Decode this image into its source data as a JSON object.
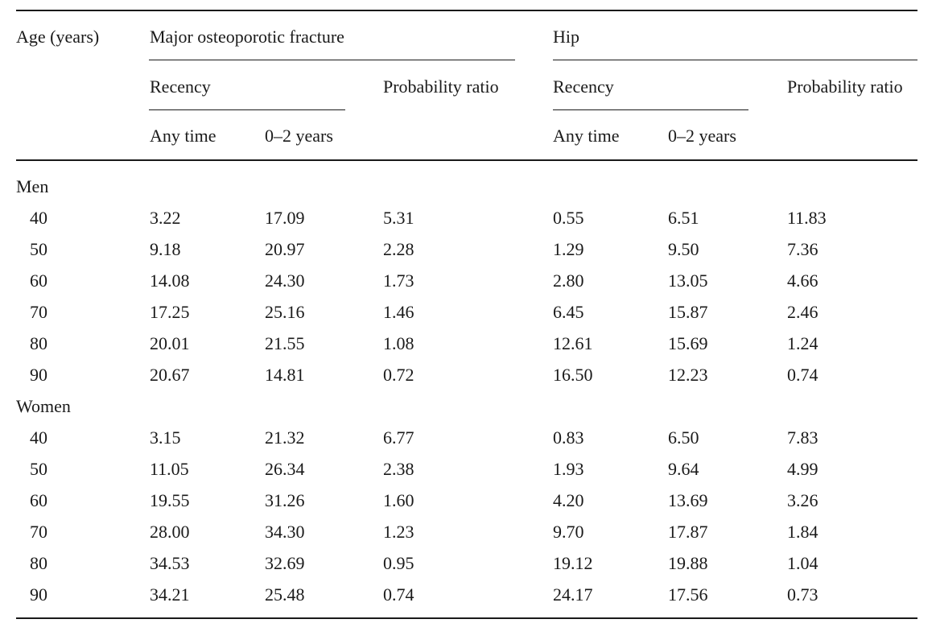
{
  "header": {
    "age": "Age (years)",
    "mof": "Major osteoporotic fracture",
    "hip": "Hip",
    "recency": "Recency",
    "prob_ratio": "Probability ratio",
    "any_time": "Any time",
    "zero_two": "0–2 years"
  },
  "groups": [
    {
      "label": "Men",
      "rows": [
        {
          "age": "40",
          "mof_any": "3.22",
          "mof_02": "17.09",
          "mof_pr": "5.31",
          "hip_any": "0.55",
          "hip_02": "6.51",
          "hip_pr": "11.83"
        },
        {
          "age": "50",
          "mof_any": "9.18",
          "mof_02": "20.97",
          "mof_pr": "2.28",
          "hip_any": "1.29",
          "hip_02": "9.50",
          "hip_pr": "7.36"
        },
        {
          "age": "60",
          "mof_any": "14.08",
          "mof_02": "24.30",
          "mof_pr": "1.73",
          "hip_any": "2.80",
          "hip_02": "13.05",
          "hip_pr": "4.66"
        },
        {
          "age": "70",
          "mof_any": "17.25",
          "mof_02": "25.16",
          "mof_pr": "1.46",
          "hip_any": "6.45",
          "hip_02": "15.87",
          "hip_pr": "2.46"
        },
        {
          "age": "80",
          "mof_any": "20.01",
          "mof_02": "21.55",
          "mof_pr": "1.08",
          "hip_any": "12.61",
          "hip_02": "15.69",
          "hip_pr": "1.24"
        },
        {
          "age": "90",
          "mof_any": "20.67",
          "mof_02": "14.81",
          "mof_pr": "0.72",
          "hip_any": "16.50",
          "hip_02": "12.23",
          "hip_pr": "0.74"
        }
      ]
    },
    {
      "label": "Women",
      "rows": [
        {
          "age": "40",
          "mof_any": "3.15",
          "mof_02": "21.32",
          "mof_pr": "6.77",
          "hip_any": "0.83",
          "hip_02": "6.50",
          "hip_pr": "7.83"
        },
        {
          "age": "50",
          "mof_any": "11.05",
          "mof_02": "26.34",
          "mof_pr": "2.38",
          "hip_any": "1.93",
          "hip_02": "9.64",
          "hip_pr": "4.99"
        },
        {
          "age": "60",
          "mof_any": "19.55",
          "mof_02": "31.26",
          "mof_pr": "1.60",
          "hip_any": "4.20",
          "hip_02": "13.69",
          "hip_pr": "3.26"
        },
        {
          "age": "70",
          "mof_any": "28.00",
          "mof_02": "34.30",
          "mof_pr": "1.23",
          "hip_any": "9.70",
          "hip_02": "17.87",
          "hip_pr": "1.84"
        },
        {
          "age": "80",
          "mof_any": "34.53",
          "mof_02": "32.69",
          "mof_pr": "0.95",
          "hip_any": "19.12",
          "hip_02": "19.88",
          "hip_pr": "1.04"
        },
        {
          "age": "90",
          "mof_any": "34.21",
          "mof_02": "25.48",
          "mof_pr": "0.74",
          "hip_any": "24.17",
          "hip_02": "17.56",
          "hip_pr": "0.73"
        }
      ]
    }
  ]
}
